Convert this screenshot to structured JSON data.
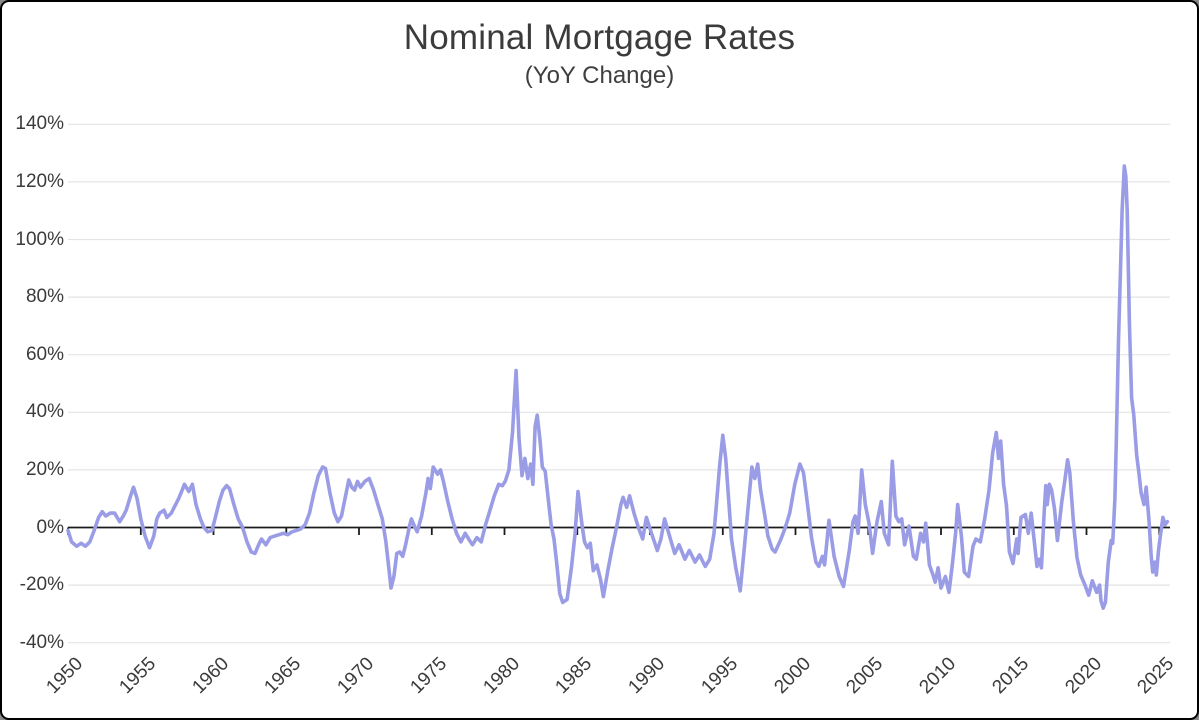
{
  "title": "Nominal Mortgage Rates",
  "subtitle": "(YoY Change)",
  "style": {
    "line_color": "#9a9ce6",
    "grid_color": "#e4e4e4",
    "zero_line_color": "#1c1c1c",
    "text_color": "#3b3b3b",
    "background": "#ffffff"
  },
  "chart_data": {
    "type": "line",
    "title": "Nominal Mortgage Rates",
    "subtitle": "(YoY Change)",
    "grid": "horizontal",
    "legend": "none",
    "y_axis": {
      "unit": "%",
      "range": [
        -45,
        147
      ],
      "ticks": [
        {
          "value": 140,
          "label": "140%"
        },
        {
          "value": 120,
          "label": "120%"
        },
        {
          "value": 100,
          "label": "100%"
        },
        {
          "value": 80,
          "label": "80%"
        },
        {
          "value": 60,
          "label": "60%"
        },
        {
          "value": 40,
          "label": "40%"
        },
        {
          "value": 20,
          "label": "20%"
        },
        {
          "value": 0,
          "label": "0%"
        },
        {
          "value": -20,
          "label": "-20%"
        },
        {
          "value": -40,
          "label": "-40%"
        }
      ]
    },
    "x_axis": {
      "range": [
        1950,
        2025.7
      ],
      "ticks": [
        {
          "year": 1950,
          "label": "1950"
        },
        {
          "year": 1955,
          "label": "1955"
        },
        {
          "year": 1960,
          "label": "1960"
        },
        {
          "year": 1965,
          "label": "1965"
        },
        {
          "year": 1970,
          "label": "1970"
        },
        {
          "year": 1975,
          "label": "1975"
        },
        {
          "year": 1980,
          "label": "1980"
        },
        {
          "year": 1985,
          "label": "1985"
        },
        {
          "year": 1990,
          "label": "1990"
        },
        {
          "year": 1995,
          "label": "1995"
        },
        {
          "year": 2000,
          "label": "2000"
        },
        {
          "year": 2005,
          "label": "2005"
        },
        {
          "year": 2010,
          "label": "2010"
        },
        {
          "year": 2015,
          "label": "2015"
        },
        {
          "year": 2020,
          "label": "2020"
        },
        {
          "year": 2025,
          "label": "2025"
        }
      ]
    },
    "zero_line": true,
    "series": {
      "color": "#9a9ce6",
      "points": [
        [
          1950.0,
          -1
        ],
        [
          1950.25,
          -5
        ],
        [
          1950.6,
          -6.5
        ],
        [
          1950.9,
          -5.5
        ],
        [
          1951.2,
          -6.5
        ],
        [
          1951.5,
          -5
        ],
        [
          1951.8,
          -1
        ],
        [
          1952.1,
          3.5
        ],
        [
          1952.35,
          5.5
        ],
        [
          1952.6,
          4
        ],
        [
          1952.9,
          5
        ],
        [
          1953.2,
          5
        ],
        [
          1953.55,
          2
        ],
        [
          1953.8,
          4
        ],
        [
          1954.0,
          6
        ],
        [
          1954.3,
          11
        ],
        [
          1954.5,
          14
        ],
        [
          1954.75,
          10
        ],
        [
          1955.0,
          3
        ],
        [
          1955.3,
          -3
        ],
        [
          1955.6,
          -7
        ],
        [
          1955.9,
          -3
        ],
        [
          1956.1,
          3
        ],
        [
          1956.3,
          5
        ],
        [
          1956.6,
          6
        ],
        [
          1956.8,
          3.5
        ],
        [
          1957.1,
          5
        ],
        [
          1957.3,
          7
        ],
        [
          1957.6,
          10
        ],
        [
          1957.85,
          13
        ],
        [
          1958.0,
          15
        ],
        [
          1958.3,
          12.5
        ],
        [
          1958.55,
          15
        ],
        [
          1958.8,
          8
        ],
        [
          1959.1,
          3
        ],
        [
          1959.35,
          0
        ],
        [
          1959.6,
          -1.5
        ],
        [
          1959.9,
          -1
        ],
        [
          1960.1,
          3
        ],
        [
          1960.4,
          9
        ],
        [
          1960.65,
          13
        ],
        [
          1960.9,
          14.5
        ],
        [
          1961.1,
          13.5
        ],
        [
          1961.4,
          8
        ],
        [
          1961.7,
          3
        ],
        [
          1962.0,
          0
        ],
        [
          1962.3,
          -5
        ],
        [
          1962.6,
          -8.5
        ],
        [
          1962.85,
          -9
        ],
        [
          1963.1,
          -6
        ],
        [
          1963.3,
          -4
        ],
        [
          1963.6,
          -6
        ],
        [
          1963.9,
          -3.5
        ],
        [
          1964.2,
          -3
        ],
        [
          1964.5,
          -2.5
        ],
        [
          1964.8,
          -2
        ],
        [
          1965.1,
          -2.5
        ],
        [
          1965.4,
          -1.5
        ],
        [
          1965.7,
          -1
        ],
        [
          1966.0,
          -0.5
        ],
        [
          1966.3,
          1
        ],
        [
          1966.6,
          5
        ],
        [
          1966.9,
          12
        ],
        [
          1967.2,
          18
        ],
        [
          1967.5,
          21
        ],
        [
          1967.7,
          20.5
        ],
        [
          1968.0,
          12
        ],
        [
          1968.3,
          5
        ],
        [
          1968.55,
          2
        ],
        [
          1968.8,
          4
        ],
        [
          1969.0,
          9
        ],
        [
          1969.3,
          16.5
        ],
        [
          1969.5,
          14
        ],
        [
          1969.7,
          13
        ],
        [
          1969.9,
          16
        ],
        [
          1970.1,
          14
        ],
        [
          1970.4,
          16
        ],
        [
          1970.7,
          17
        ],
        [
          1971.0,
          13
        ],
        [
          1971.3,
          8
        ],
        [
          1971.6,
          3
        ],
        [
          1971.85,
          -5
        ],
        [
          1972.05,
          -14
        ],
        [
          1972.2,
          -21
        ],
        [
          1972.4,
          -17
        ],
        [
          1972.6,
          -9
        ],
        [
          1972.8,
          -8.5
        ],
        [
          1973.0,
          -10
        ],
        [
          1973.2,
          -6
        ],
        [
          1973.45,
          0
        ],
        [
          1973.6,
          3
        ],
        [
          1973.85,
          0
        ],
        [
          1974.0,
          -1.5
        ],
        [
          1974.3,
          4
        ],
        [
          1974.6,
          12
        ],
        [
          1974.75,
          17
        ],
        [
          1974.9,
          13.5
        ],
        [
          1975.1,
          21
        ],
        [
          1975.4,
          18.5
        ],
        [
          1975.6,
          20
        ],
        [
          1975.8,
          16
        ],
        [
          1976.1,
          9
        ],
        [
          1976.4,
          3
        ],
        [
          1976.7,
          -2
        ],
        [
          1977.0,
          -5
        ],
        [
          1977.3,
          -2
        ],
        [
          1977.6,
          -4.5
        ],
        [
          1977.8,
          -6
        ],
        [
          1978.1,
          -3.5
        ],
        [
          1978.4,
          -5
        ],
        [
          1978.7,
          1
        ],
        [
          1979.0,
          6
        ],
        [
          1979.3,
          11
        ],
        [
          1979.6,
          15
        ],
        [
          1979.85,
          14.5
        ],
        [
          1980.05,
          16
        ],
        [
          1980.3,
          20
        ],
        [
          1980.55,
          33
        ],
        [
          1980.8,
          54.5
        ],
        [
          1981.0,
          31
        ],
        [
          1981.2,
          18
        ],
        [
          1981.4,
          24
        ],
        [
          1981.6,
          17
        ],
        [
          1981.8,
          22
        ],
        [
          1981.95,
          15
        ],
        [
          1982.1,
          35
        ],
        [
          1982.25,
          39
        ],
        [
          1982.45,
          30
        ],
        [
          1982.6,
          21
        ],
        [
          1982.8,
          19.5
        ],
        [
          1983.0,
          10
        ],
        [
          1983.2,
          1
        ],
        [
          1983.4,
          -4
        ],
        [
          1983.6,
          -13
        ],
        [
          1983.8,
          -23
        ],
        [
          1984.0,
          -26
        ],
        [
          1984.3,
          -25
        ],
        [
          1984.6,
          -14
        ],
        [
          1984.85,
          -2
        ],
        [
          1985.05,
          12.5
        ],
        [
          1985.3,
          2
        ],
        [
          1985.5,
          -5
        ],
        [
          1985.7,
          -7
        ],
        [
          1985.9,
          -5.5
        ],
        [
          1986.1,
          -15
        ],
        [
          1986.35,
          -13
        ],
        [
          1986.6,
          -18
        ],
        [
          1986.8,
          -24
        ],
        [
          1987.1,
          -15
        ],
        [
          1987.4,
          -7
        ],
        [
          1987.7,
          0
        ],
        [
          1988.0,
          8
        ],
        [
          1988.15,
          10.5
        ],
        [
          1988.4,
          7
        ],
        [
          1988.6,
          11
        ],
        [
          1988.9,
          5
        ],
        [
          1989.2,
          0
        ],
        [
          1989.5,
          -4
        ],
        [
          1989.75,
          3.5
        ],
        [
          1990.1,
          -2
        ],
        [
          1990.5,
          -8
        ],
        [
          1990.75,
          -4
        ],
        [
          1991.0,
          3
        ],
        [
          1991.4,
          -4
        ],
        [
          1991.7,
          -9
        ],
        [
          1992.0,
          -6
        ],
        [
          1992.4,
          -11
        ],
        [
          1992.7,
          -8
        ],
        [
          1993.1,
          -12
        ],
        [
          1993.4,
          -9.5
        ],
        [
          1993.8,
          -13.5
        ],
        [
          1994.1,
          -11
        ],
        [
          1994.4,
          -2
        ],
        [
          1994.6,
          10
        ],
        [
          1994.8,
          22
        ],
        [
          1995.0,
          32
        ],
        [
          1995.2,
          24
        ],
        [
          1995.4,
          10
        ],
        [
          1995.6,
          -4
        ],
        [
          1995.9,
          -14
        ],
        [
          1996.2,
          -22
        ],
        [
          1996.5,
          -6
        ],
        [
          1996.8,
          10
        ],
        [
          1997.0,
          21
        ],
        [
          1997.2,
          17
        ],
        [
          1997.4,
          22
        ],
        [
          1997.6,
          13
        ],
        [
          1997.9,
          4
        ],
        [
          1998.1,
          -3
        ],
        [
          1998.4,
          -7.5
        ],
        [
          1998.6,
          -8.5
        ],
        [
          1999.0,
          -4
        ],
        [
          1999.3,
          0
        ],
        [
          1999.6,
          5
        ],
        [
          1999.95,
          15
        ],
        [
          2000.3,
          22
        ],
        [
          2000.55,
          19
        ],
        [
          2000.85,
          7
        ],
        [
          2001.1,
          -3.5
        ],
        [
          2001.4,
          -12
        ],
        [
          2001.6,
          -13.5
        ],
        [
          2001.85,
          -10
        ],
        [
          2002.0,
          -13
        ],
        [
          2002.3,
          2.5
        ],
        [
          2002.65,
          -10
        ],
        [
          2003.0,
          -17
        ],
        [
          2003.3,
          -20.5
        ],
        [
          2003.7,
          -8
        ],
        [
          2003.95,
          2
        ],
        [
          2004.1,
          4
        ],
        [
          2004.3,
          -2
        ],
        [
          2004.55,
          20
        ],
        [
          2004.8,
          8
        ],
        [
          2005.05,
          1.5
        ],
        [
          2005.3,
          -9
        ],
        [
          2005.6,
          2
        ],
        [
          2005.9,
          9
        ],
        [
          2006.1,
          -2
        ],
        [
          2006.4,
          -6
        ],
        [
          2006.65,
          23
        ],
        [
          2006.9,
          4
        ],
        [
          2007.1,
          2
        ],
        [
          2007.3,
          3
        ],
        [
          2007.5,
          -6
        ],
        [
          2007.8,
          0.5
        ],
        [
          2008.1,
          -10
        ],
        [
          2008.3,
          -11
        ],
        [
          2008.6,
          -2
        ],
        [
          2008.8,
          -5
        ],
        [
          2008.95,
          1.5
        ],
        [
          2009.2,
          -13
        ],
        [
          2009.45,
          -16.5
        ],
        [
          2009.6,
          -19
        ],
        [
          2009.8,
          -14
        ],
        [
          2010.0,
          -21
        ],
        [
          2010.3,
          -17
        ],
        [
          2010.55,
          -22.5
        ],
        [
          2010.8,
          -12
        ],
        [
          2011.0,
          -2
        ],
        [
          2011.15,
          8
        ],
        [
          2011.4,
          -3
        ],
        [
          2011.6,
          -15.5
        ],
        [
          2011.9,
          -17
        ],
        [
          2012.2,
          -6.5
        ],
        [
          2012.4,
          -4
        ],
        [
          2012.7,
          -5
        ],
        [
          2013.0,
          3
        ],
        [
          2013.3,
          13
        ],
        [
          2013.55,
          26
        ],
        [
          2013.8,
          33
        ],
        [
          2013.95,
          24
        ],
        [
          2014.1,
          30
        ],
        [
          2014.3,
          15
        ],
        [
          2014.5,
          7.5
        ],
        [
          2014.7,
          -8.5
        ],
        [
          2014.95,
          -12.5
        ],
        [
          2015.2,
          -4
        ],
        [
          2015.3,
          -9
        ],
        [
          2015.5,
          3.5
        ],
        [
          2015.8,
          4.5
        ],
        [
          2016.0,
          -2
        ],
        [
          2016.2,
          5
        ],
        [
          2016.6,
          -13.5
        ],
        [
          2016.75,
          -11
        ],
        [
          2016.9,
          -14
        ],
        [
          2017.1,
          6
        ],
        [
          2017.2,
          14.5
        ],
        [
          2017.3,
          8
        ],
        [
          2017.45,
          15
        ],
        [
          2017.6,
          13
        ],
        [
          2017.8,
          6.5
        ],
        [
          2018.0,
          -4.5
        ],
        [
          2018.3,
          9
        ],
        [
          2018.5,
          16
        ],
        [
          2018.7,
          23.5
        ],
        [
          2018.85,
          19
        ],
        [
          2019.1,
          2
        ],
        [
          2019.35,
          -10.5
        ],
        [
          2019.6,
          -16.5
        ],
        [
          2019.9,
          -20
        ],
        [
          2020.15,
          -23.5
        ],
        [
          2020.4,
          -18.5
        ],
        [
          2020.7,
          -22.5
        ],
        [
          2020.9,
          -20
        ],
        [
          2021.0,
          -25.5
        ],
        [
          2021.15,
          -28
        ],
        [
          2021.3,
          -26
        ],
        [
          2021.5,
          -12
        ],
        [
          2021.7,
          -4.5
        ],
        [
          2021.8,
          -5.5
        ],
        [
          2021.95,
          10
        ],
        [
          2022.05,
          30
        ],
        [
          2022.2,
          65
        ],
        [
          2022.35,
          92
        ],
        [
          2022.45,
          110
        ],
        [
          2022.6,
          125.5
        ],
        [
          2022.7,
          122
        ],
        [
          2022.8,
          110
        ],
        [
          2022.95,
          71
        ],
        [
          2023.1,
          45
        ],
        [
          2023.25,
          39
        ],
        [
          2023.45,
          25
        ],
        [
          2023.6,
          19
        ],
        [
          2023.75,
          12
        ],
        [
          2023.95,
          8
        ],
        [
          2024.1,
          14
        ],
        [
          2024.3,
          2
        ],
        [
          2024.45,
          -10
        ],
        [
          2024.55,
          -15.5
        ],
        [
          2024.7,
          -12
        ],
        [
          2024.8,
          -16.5
        ],
        [
          2024.95,
          -8
        ],
        [
          2025.1,
          -2
        ],
        [
          2025.25,
          3.5
        ],
        [
          2025.4,
          1
        ],
        [
          2025.55,
          2
        ]
      ]
    }
  }
}
